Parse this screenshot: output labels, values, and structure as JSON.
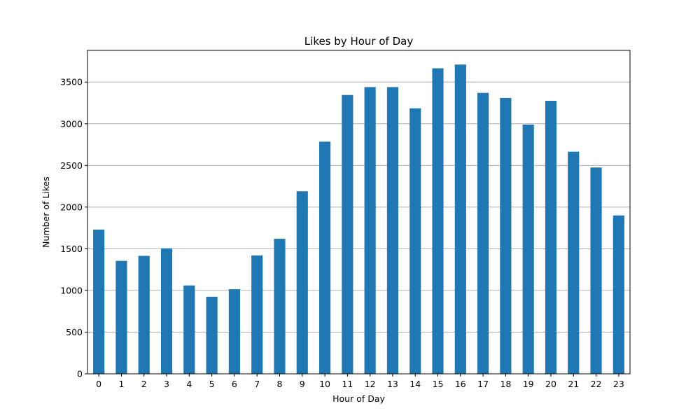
{
  "chart_data": {
    "type": "bar",
    "title": "Likes by Hour of Day",
    "xlabel": "Hour of Day",
    "ylabel": "Number of Likes",
    "categories": [
      "0",
      "1",
      "2",
      "3",
      "4",
      "5",
      "6",
      "7",
      "8",
      "9",
      "10",
      "11",
      "12",
      "13",
      "14",
      "15",
      "16",
      "17",
      "18",
      "19",
      "20",
      "21",
      "22",
      "23"
    ],
    "values": [
      1730,
      1355,
      1415,
      1505,
      1060,
      925,
      1015,
      1420,
      1620,
      2190,
      2785,
      3345,
      3440,
      3440,
      3185,
      3665,
      3710,
      3370,
      3310,
      2990,
      3275,
      2665,
      2475,
      1900
    ],
    "ylim": [
      0,
      3880
    ],
    "yticks": [
      0,
      500,
      1000,
      1500,
      2000,
      2500,
      3000,
      3500
    ],
    "grid": "y",
    "bar_color": "#1f77b4"
  }
}
